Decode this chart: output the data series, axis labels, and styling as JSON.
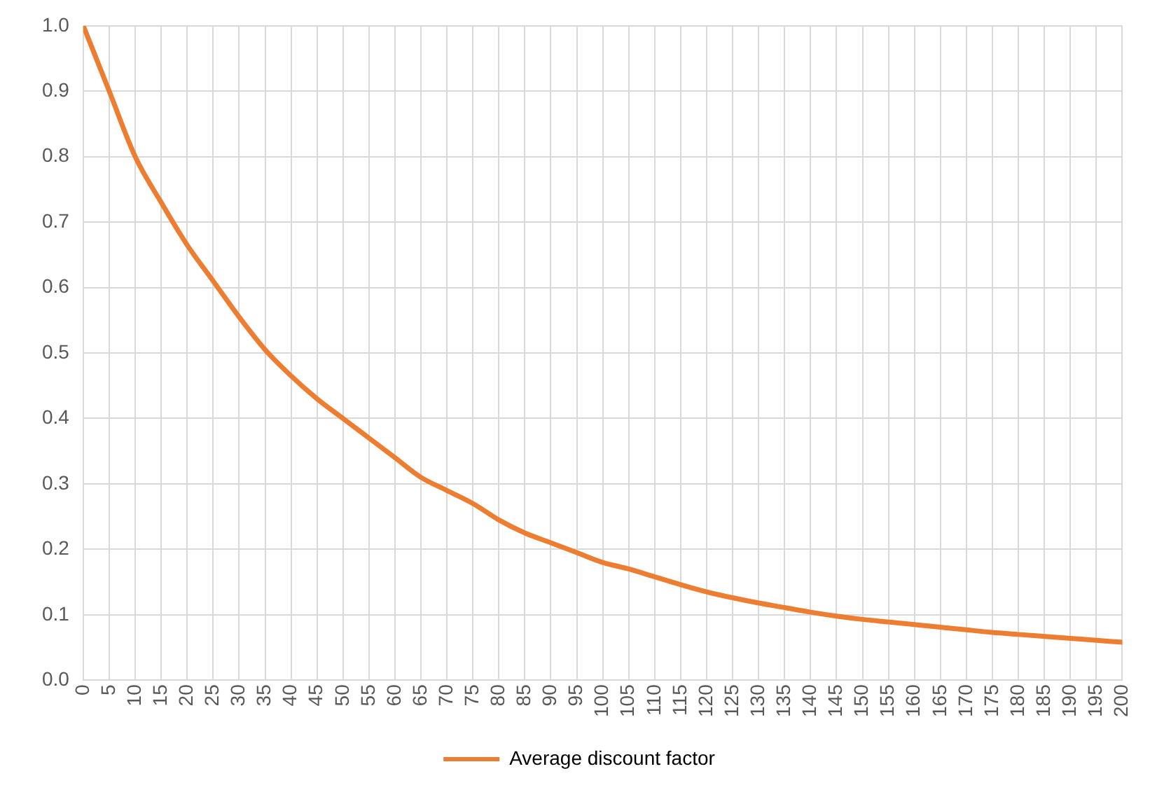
{
  "chart_data": {
    "type": "line",
    "xlim": [
      0,
      200
    ],
    "xticks": [
      0,
      5,
      10,
      15,
      20,
      25,
      30,
      35,
      40,
      45,
      50,
      55,
      60,
      65,
      70,
      75,
      80,
      85,
      90,
      95,
      100,
      105,
      110,
      115,
      120,
      125,
      130,
      135,
      140,
      145,
      150,
      155,
      160,
      165,
      170,
      175,
      180,
      185,
      190,
      195,
      200
    ],
    "ylim": [
      0,
      1
    ],
    "yticks": [
      {
        "value": 0,
        "label": "0.0"
      },
      {
        "value": 0.1,
        "label": "0.1"
      },
      {
        "value": 0.2,
        "label": "0.2"
      },
      {
        "value": 0.3,
        "label": "0.3"
      },
      {
        "value": 0.4,
        "label": "0.4"
      },
      {
        "value": 0.5,
        "label": "0.5"
      },
      {
        "value": 0.6,
        "label": "0.6"
      },
      {
        "value": 0.7,
        "label": "0.7"
      },
      {
        "value": 0.8,
        "label": "0.8"
      },
      {
        "value": 0.9,
        "label": "0.9"
      },
      {
        "value": 1,
        "label": "1.0"
      }
    ],
    "x": [
      0,
      5,
      10,
      15,
      20,
      25,
      30,
      35,
      40,
      45,
      50,
      55,
      60,
      65,
      70,
      75,
      80,
      85,
      90,
      95,
      100,
      105,
      110,
      115,
      120,
      125,
      130,
      135,
      140,
      145,
      150,
      155,
      160,
      165,
      170,
      175,
      180,
      185,
      190,
      195,
      200
    ],
    "series": [
      {
        "name": "Average discount factor",
        "color": "#ed7d31",
        "values": [
          1.0,
          0.9,
          0.8,
          0.73,
          0.665,
          0.61,
          0.555,
          0.505,
          0.465,
          0.43,
          0.4,
          0.37,
          0.34,
          0.31,
          0.29,
          0.27,
          0.245,
          0.225,
          0.21,
          0.195,
          0.18,
          0.17,
          0.158,
          0.146,
          0.135,
          0.126,
          0.118,
          0.111,
          0.104,
          0.098,
          0.093,
          0.089,
          0.085,
          0.081,
          0.077,
          0.073,
          0.07,
          0.067,
          0.064,
          0.061,
          0.058
        ]
      }
    ],
    "grid": true,
    "legend": "bottom",
    "marker": "none",
    "line_style": "solid"
  }
}
